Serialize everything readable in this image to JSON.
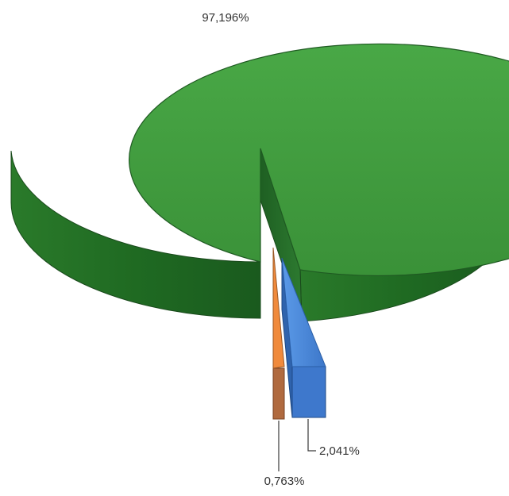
{
  "chart_data": {
    "type": "pie",
    "style": "3d-exploded",
    "slices": [
      {
        "label": "97,196%",
        "value": 97.196,
        "color": "#3f9a3f"
      },
      {
        "label": "2,041%",
        "value": 2.041,
        "color": "#4a86d9"
      },
      {
        "label": "0,763%",
        "value": 0.763,
        "color": "#e9843a"
      }
    ],
    "title": "",
    "legend": "none"
  }
}
